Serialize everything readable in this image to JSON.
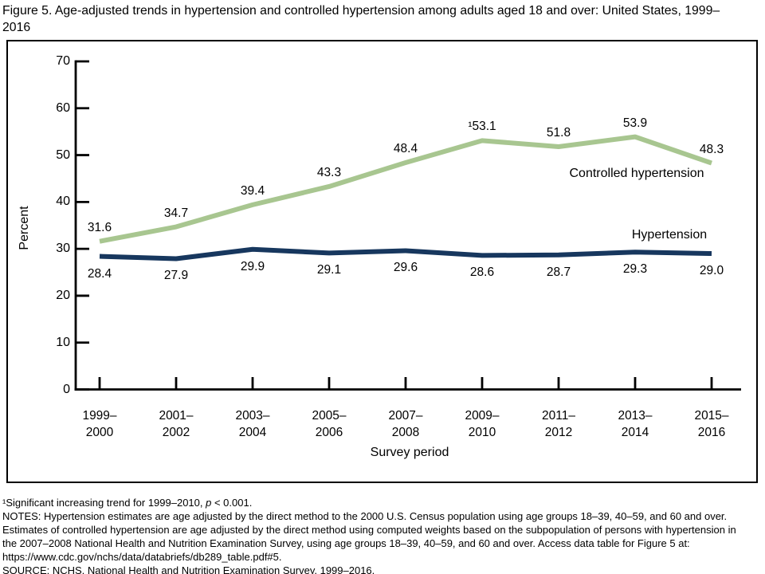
{
  "chart_data": {
    "type": "line",
    "title": "Figure 5. Age-adjusted trends in hypertension and controlled hypertension among adults aged 18 and over: United States, 1999–2016",
    "xlabel": "Survey period",
    "ylabel": "Percent",
    "ylim": [
      0,
      70
    ],
    "yticks": [
      0,
      10,
      20,
      30,
      40,
      50,
      60,
      70
    ],
    "grid": false,
    "legend_position": "labels-inline-right",
    "categories": [
      "1999–\n2000",
      "2001–\n2002",
      "2003–\n2004",
      "2005–\n2006",
      "2007–\n2008",
      "2009–\n2010",
      "2011–\n2012",
      "2013–\n2014",
      "2015–\n2016"
    ],
    "series": [
      {
        "name": "Controlled hypertension",
        "color": "#a8c690",
        "values": [
          31.6,
          34.7,
          39.4,
          43.3,
          48.4,
          53.1,
          51.8,
          53.9,
          48.3
        ],
        "point_labels": [
          "31.6",
          "34.7",
          "39.4",
          "43.3",
          "48.4",
          "¹53.1",
          "51.8",
          "53.9",
          "48.3"
        ],
        "label_position": "above"
      },
      {
        "name": "Hypertension",
        "color": "#17375e",
        "values": [
          28.4,
          27.9,
          29.9,
          29.1,
          29.6,
          28.6,
          28.7,
          29.3,
          29.0
        ],
        "point_labels": [
          "28.4",
          "27.9",
          "29.9",
          "29.1",
          "29.6",
          "28.6",
          "28.7",
          "29.3",
          "29.0"
        ],
        "label_position": "below"
      }
    ]
  },
  "footnotes": [
    {
      "parts": [
        {
          "t": "¹Significant increasing trend for 1999–2010, "
        },
        {
          "t": "p",
          "i": true
        },
        {
          "t": " < 0.001."
        }
      ]
    },
    {
      "parts": [
        {
          "t": "NOTES: Hypertension estimates are age adjusted by the direct method to the 2000 U.S. Census population using age groups 18–39, 40–59, and 60 and over."
        }
      ]
    },
    {
      "parts": [
        {
          "t": "Estimates of controlled hypertension are age adjusted by the direct method using computed weights based on the subpopulation of persons with hypertension in"
        }
      ]
    },
    {
      "parts": [
        {
          "t": "the 2007–2008 National Health and Nutrition Examination Survey, using age groups 18–39, 40–59, and 60 and over. Access data table for Figure 5 at:"
        }
      ]
    },
    {
      "parts": [
        {
          "t": "https://www.cdc.gov/nchs/data/databriefs/db289_table.pdf#5."
        }
      ]
    },
    {
      "parts": [
        {
          "t": "SOURCE: NCHS, National Health and Nutrition Examination Survey, 1999–2016."
        }
      ]
    }
  ]
}
